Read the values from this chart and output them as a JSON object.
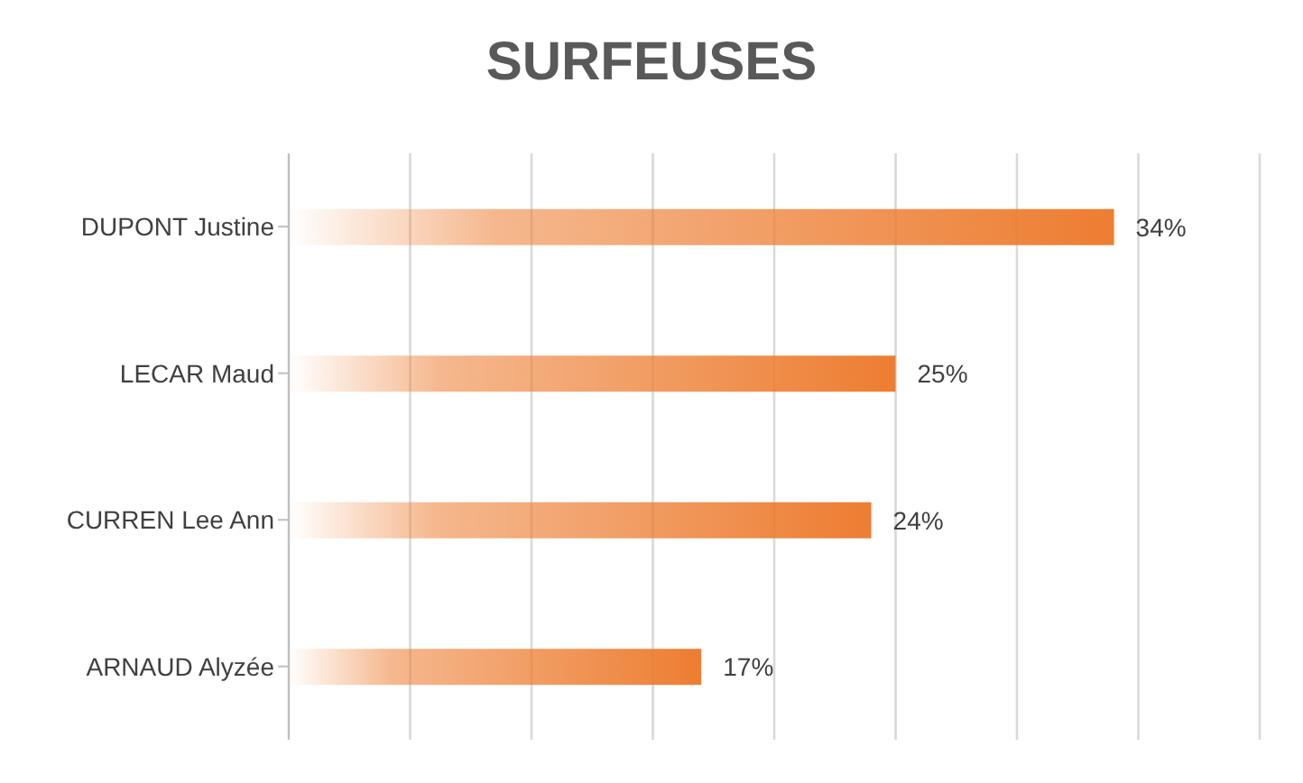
{
  "chart_data": {
    "type": "bar",
    "title": "SURFEUSES",
    "orientation": "horizontal",
    "categories": [
      "DUPONT Justine",
      "LECAR Maud",
      "CURREN Lee Ann",
      "ARNAUD Alyzée"
    ],
    "values": [
      34,
      25,
      24,
      17
    ],
    "value_labels": [
      "34%",
      "25%",
      "24%",
      "17%"
    ],
    "color": "#ed7d31",
    "xlim": [
      0,
      40
    ],
    "xticks": [
      {
        "value": 0,
        "label": null
      },
      {
        "value": 5,
        "label": null
      },
      {
        "value": 10,
        "label": null
      },
      {
        "value": 15,
        "label": null
      },
      {
        "value": 20,
        "label": null
      },
      {
        "value": 25,
        "label": null
      },
      {
        "value": 30,
        "label": null
      },
      {
        "value": 35,
        "label": null
      },
      {
        "value": 40,
        "label": null
      }
    ],
    "tick_labels": "y",
    "grid": "x",
    "legend": false
  }
}
